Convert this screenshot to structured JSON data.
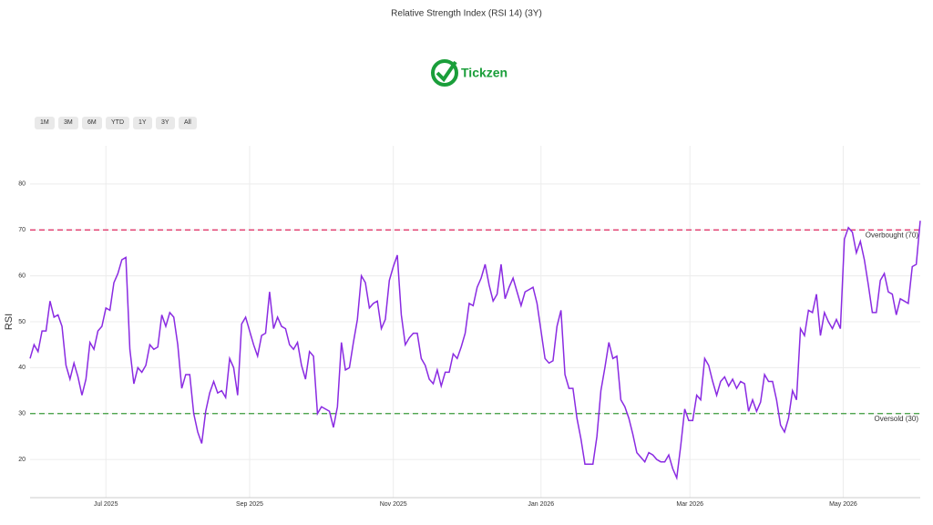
{
  "chart_data": {
    "type": "line",
    "title": "Relative Strength Index (RSI 14) (3Y)",
    "ylabel": "RSI",
    "color": "#8a2be2",
    "grid": true,
    "values": [
      42,
      45,
      43.5,
      48,
      48,
      54.5,
      51,
      51.5,
      49,
      40.5,
      37.5,
      41,
      38,
      34,
      37.5,
      45.5,
      44,
      48,
      49,
      53,
      52.5,
      58.5,
      60.5,
      63.5,
      64,
      44,
      36.5,
      40,
      39,
      40.5,
      45,
      44,
      44.5,
      51.5,
      49,
      52,
      51,
      45,
      35.5,
      38.5,
      38.5,
      30,
      26,
      23.5,
      30.5,
      34.5,
      37,
      34.5,
      35,
      33.5,
      42,
      40,
      34,
      49.5,
      51,
      48,
      45,
      42.5,
      47,
      47.5,
      56.5,
      48.5,
      51,
      49,
      48.5,
      45,
      44,
      45.5,
      40.5,
      37.5,
      43.5,
      42.5,
      30,
      31.5,
      31,
      30.5,
      27,
      31.5,
      45.5,
      39.5,
      40,
      45.5,
      50.5,
      60,
      58.5,
      53,
      54,
      54.5,
      48.5,
      50.5,
      59,
      62,
      64.5,
      51.5,
      45,
      46.5,
      47.5,
      47.5,
      42,
      40.5,
      37.5,
      36.5,
      39.5,
      36,
      39,
      39,
      43,
      42,
      44.5,
      47.5,
      54,
      53.5,
      57.5,
      59.5,
      62.5,
      58,
      54.5,
      56,
      62.5,
      55,
      57.5,
      59.5,
      56.5,
      53.5,
      56.5,
      57,
      57.5,
      54,
      48,
      42,
      41,
      41.5,
      49,
      52.5,
      38.5,
      35.5,
      35.5,
      29,
      24.5,
      19,
      19,
      19,
      25,
      35,
      40,
      45.5,
      42,
      42.5,
      33,
      31.5,
      29,
      25.5,
      21.5,
      20.5,
      19.5,
      21.5,
      21,
      20,
      19.5,
      19.5,
      21,
      18,
      16,
      23,
      31,
      28.5,
      28.5,
      34,
      33,
      42,
      40.5,
      37,
      34,
      37,
      38,
      36,
      37.5,
      35.5,
      37,
      36.5,
      30.5,
      33,
      30.5,
      32.5,
      38.5,
      37,
      37,
      33,
      27.5,
      26,
      29,
      35,
      33,
      48.5,
      47,
      52.5,
      52,
      56,
      47,
      52,
      50,
      48.5,
      50.5,
      48.5,
      68,
      70.5,
      69.5,
      65,
      67.5,
      63.5,
      58,
      52,
      52,
      59,
      60.5,
      56.5,
      56,
      51.5,
      55,
      54.5,
      54,
      62,
      62.5,
      72
    ],
    "xlim": [
      0,
      223
    ],
    "xticks": [
      {
        "value": 19,
        "label": "Jul 2025"
      },
      {
        "value": 55,
        "label": "Sep 2025"
      },
      {
        "value": 91,
        "label": "Nov 2025"
      },
      {
        "value": 128,
        "label": "Jan 2026"
      },
      {
        "value": 165.3,
        "label": "Mar 2026"
      },
      {
        "value": 203.7,
        "label": "May 2026"
      }
    ],
    "ylim": [
      11.7,
      88.3
    ],
    "yticks": [
      20,
      30,
      40,
      50,
      60,
      70,
      80
    ],
    "hlines": [
      {
        "value": 70,
        "label": "Overbought (70)",
        "color": "#e0245e"
      },
      {
        "value": 30,
        "label": "Oversold (30)",
        "color": "#3a9a3a"
      }
    ]
  },
  "logo": "Tickzen",
  "range_buttons": [
    "1M",
    "3M",
    "6M",
    "YTD",
    "1Y",
    "3Y",
    "All"
  ]
}
